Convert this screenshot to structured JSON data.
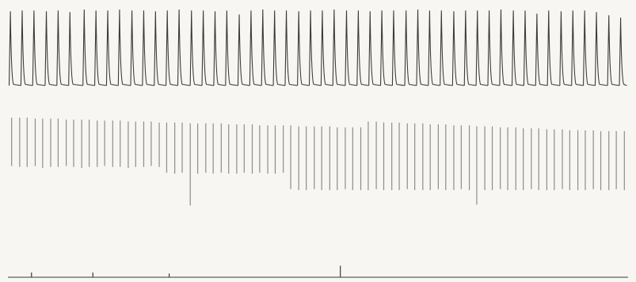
{
  "chart_data": [
    {
      "type": "line",
      "tick_labels": false,
      "color": "#3a3a3a",
      "xlim": [
        0,
        100
      ],
      "ylim": [
        0,
        10
      ],
      "x": [
        0.4,
        2.3,
        4.2,
        6.2,
        8.1,
        10.0,
        12.3,
        14.2,
        16.1,
        18.0,
        20.0,
        21.9,
        23.8,
        25.7,
        27.6,
        29.6,
        31.5,
        33.4,
        35.3,
        37.3,
        39.2,
        41.1,
        43.0,
        44.9,
        46.9,
        48.8,
        50.7,
        52.6,
        54.6,
        56.5,
        58.4,
        60.3,
        62.2,
        64.2,
        66.1,
        68.0,
        69.9,
        71.9,
        73.8,
        75.7,
        77.6,
        79.5,
        81.5,
        83.4,
        85.3,
        87.2,
        89.2,
        91.1,
        93.0,
        94.9,
        96.9,
        98.8
      ],
      "values": [
        9.2,
        9.3,
        9.3,
        9.2,
        9.3,
        9.1,
        9.4,
        9.3,
        9.3,
        9.4,
        9.3,
        9.3,
        9.2,
        9.3,
        9.4,
        9.3,
        9.3,
        9.2,
        9.3,
        8.8,
        9.3,
        9.4,
        9.3,
        9.3,
        9.2,
        9.3,
        9.3,
        9.4,
        9.3,
        9.3,
        9.2,
        9.3,
        9.3,
        9.3,
        9.4,
        9.3,
        9.3,
        9.2,
        9.3,
        9.3,
        9.3,
        9.4,
        9.3,
        9.3,
        8.9,
        9.3,
        9.2,
        9.3,
        9.3,
        9.1,
        8.7,
        8.4
      ]
    },
    {
      "type": "range",
      "tick_labels": false,
      "color": "#6a6a6a",
      "xlim": [
        0,
        100
      ],
      "ylim": [
        0,
        10
      ],
      "x": [
        0.6,
        1.9,
        3.1,
        4.4,
        5.6,
        6.9,
        8.1,
        9.4,
        10.6,
        11.9,
        13.1,
        14.4,
        15.6,
        16.9,
        18.1,
        19.4,
        20.6,
        21.9,
        23.1,
        24.4,
        25.6,
        26.9,
        28.1,
        29.4,
        30.6,
        31.9,
        33.1,
        34.4,
        35.6,
        36.9,
        38.1,
        39.4,
        40.6,
        41.9,
        43.1,
        44.4,
        45.6,
        46.9,
        48.1,
        49.4,
        50.6,
        51.9,
        53.1,
        54.4,
        55.6,
        56.9,
        58.1,
        59.4,
        60.6,
        61.9,
        63.1,
        64.4,
        65.6,
        66.9,
        68.1,
        69.4,
        70.6,
        71.9,
        73.1,
        74.4,
        75.6,
        76.9,
        78.1,
        79.4,
        80.6,
        81.9,
        83.1,
        84.4,
        85.6,
        86.9,
        88.1,
        89.4,
        90.6,
        91.9,
        93.1,
        94.4,
        95.6,
        96.9,
        98.1,
        99.4
      ],
      "high": [
        9.3,
        9.3,
        9.3,
        9.2,
        9.2,
        9.2,
        9.2,
        9.1,
        9.1,
        9.1,
        9.1,
        9.0,
        9.0,
        9.0,
        9.0,
        8.9,
        8.9,
        8.9,
        8.9,
        8.8,
        8.8,
        8.8,
        8.8,
        8.7,
        8.7,
        8.7,
        8.7,
        8.7,
        8.6,
        8.6,
        8.6,
        8.6,
        8.5,
        8.5,
        8.5,
        8.5,
        8.5,
        8.4,
        8.4,
        8.4,
        8.4,
        8.4,
        8.3,
        8.3,
        8.3,
        8.3,
        8.9,
        8.9,
        8.8,
        8.8,
        8.8,
        8.7,
        8.7,
        8.7,
        8.6,
        8.6,
        8.6,
        8.5,
        8.5,
        8.5,
        8.4,
        8.4,
        8.4,
        8.3,
        8.3,
        8.3,
        8.2,
        8.2,
        8.2,
        8.1,
        8.1,
        8.1,
        8.0,
        8.0,
        8.0,
        8.0,
        7.9,
        7.9,
        7.9,
        7.9
      ],
      "low": [
        4.3,
        4.2,
        4.2,
        4.3,
        4.1,
        4.2,
        4.2,
        4.3,
        4.2,
        4.1,
        4.2,
        4.2,
        4.3,
        4.2,
        4.2,
        4.1,
        4.2,
        4.2,
        4.3,
        4.2,
        3.6,
        3.5,
        3.6,
        0.2,
        3.5,
        3.6,
        3.5,
        3.6,
        3.5,
        3.5,
        3.6,
        3.5,
        3.6,
        3.5,
        3.5,
        3.6,
        1.9,
        1.8,
        1.8,
        1.9,
        1.8,
        1.8,
        1.8,
        1.9,
        1.8,
        1.8,
        1.8,
        1.9,
        1.8,
        1.8,
        1.8,
        1.9,
        1.8,
        1.8,
        1.8,
        1.9,
        1.8,
        1.8,
        1.9,
        1.8,
        0.3,
        1.8,
        1.8,
        1.9,
        1.8,
        1.8,
        1.8,
        1.9,
        1.8,
        1.8,
        1.8,
        1.9,
        1.8,
        1.8,
        1.8,
        1.9,
        1.8,
        1.8,
        1.9,
        1.8
      ]
    },
    {
      "type": "event",
      "tick_labels": false,
      "color": "#3a3a3a",
      "xlim": [
        0,
        100
      ],
      "ylim": [
        0,
        10
      ],
      "x": [
        3.8,
        13.7,
        26.0,
        53.6
      ],
      "values": [
        1.0,
        1.0,
        0.8,
        2.4
      ]
    }
  ]
}
